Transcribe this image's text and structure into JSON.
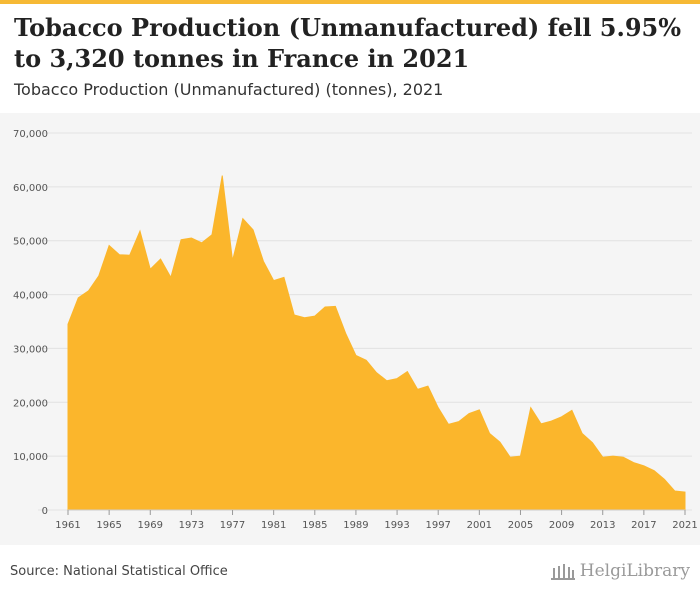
{
  "colors": {
    "accent": "#f6b935",
    "fill": "#fbb62c",
    "plot_bg": "#f5f5f5",
    "grid": "#e2e2e2",
    "axis": "#555555"
  },
  "header": {
    "title": "Tobacco Production (Unmanufactured) fell 5.95% to 3,320 tonnes in France in 2021",
    "subtitle": "Tobacco Production (Unmanufactured) (tonnes), 2021"
  },
  "footer": {
    "source": "Source: National Statistical Office",
    "logo_text": "HelgiLibrary",
    "logo_icon": "library-columns-icon"
  },
  "chart_data": {
    "type": "area",
    "title": "",
    "xlabel": "",
    "ylabel": "",
    "grid": true,
    "ylim": [
      0,
      70000
    ],
    "xlim": [
      1961,
      2021
    ],
    "y_ticks": [
      "0",
      "10,000",
      "20,000",
      "30,000",
      "40,000",
      "50,000",
      "60,000",
      "70,000"
    ],
    "x_ticks": [
      "1961",
      "1965",
      "1969",
      "1973",
      "1977",
      "1981",
      "1985",
      "1989",
      "1993",
      "1997",
      "2001",
      "2005",
      "2009",
      "2013",
      "2017",
      "2021"
    ],
    "x": [
      1961,
      1962,
      1963,
      1964,
      1965,
      1966,
      1967,
      1968,
      1969,
      1970,
      1971,
      1972,
      1973,
      1974,
      1975,
      1976,
      1977,
      1978,
      1979,
      1980,
      1981,
      1982,
      1983,
      1984,
      1985,
      1986,
      1987,
      1988,
      1989,
      1990,
      1991,
      1992,
      1993,
      1994,
      1995,
      1996,
      1997,
      1998,
      1999,
      2000,
      2001,
      2002,
      2003,
      2004,
      2005,
      2006,
      2007,
      2008,
      2009,
      2010,
      2011,
      2012,
      2013,
      2014,
      2015,
      2016,
      2017,
      2018,
      2019,
      2020,
      2021
    ],
    "series": [
      {
        "values": [
          34500,
          39400,
          40700,
          43500,
          49100,
          47400,
          47300,
          51800,
          44700,
          46600,
          43200,
          50200,
          50500,
          49600,
          51100,
          62100,
          46300,
          54100,
          52000,
          46200,
          42600,
          43200,
          36200,
          35700,
          36000,
          37700,
          37800,
          32800,
          28700,
          27800,
          25500,
          24000,
          24400,
          25700,
          22400,
          23000,
          19000,
          15900,
          16400,
          17900,
          18600,
          14200,
          12600,
          9800,
          10000,
          19000,
          16000,
          16500,
          17300,
          18500,
          14200,
          12500,
          9800,
          10000,
          9800,
          8800,
          8200,
          7300,
          5700,
          3530,
          3320
        ]
      }
    ]
  }
}
